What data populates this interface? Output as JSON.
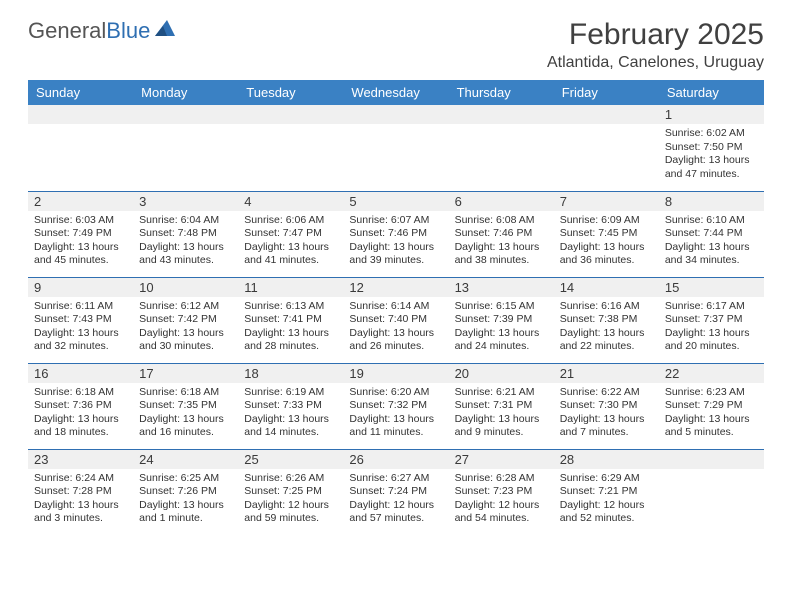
{
  "logo": {
    "text1": "General",
    "text2": "Blue"
  },
  "title": "February 2025",
  "location": "Atlantida, Canelones, Uruguay",
  "colors": {
    "header_bg": "#3a81c4",
    "header_text": "#ffffff",
    "border": "#2f6fb2",
    "daynum_bg": "#f0f0f0",
    "text": "#333333",
    "logo_gray": "#555555",
    "logo_blue": "#2f6fb2",
    "page_bg": "#ffffff"
  },
  "fonts": {
    "title_size_pt": 22,
    "location_size_pt": 12,
    "weekday_size_pt": 10,
    "body_size_pt": 8
  },
  "weekdays": [
    "Sunday",
    "Monday",
    "Tuesday",
    "Wednesday",
    "Thursday",
    "Friday",
    "Saturday"
  ],
  "weeks": [
    [
      {
        "day": "",
        "lines": []
      },
      {
        "day": "",
        "lines": []
      },
      {
        "day": "",
        "lines": []
      },
      {
        "day": "",
        "lines": []
      },
      {
        "day": "",
        "lines": []
      },
      {
        "day": "",
        "lines": []
      },
      {
        "day": "1",
        "lines": [
          "Sunrise: 6:02 AM",
          "Sunset: 7:50 PM",
          "Daylight: 13 hours and 47 minutes."
        ]
      }
    ],
    [
      {
        "day": "2",
        "lines": [
          "Sunrise: 6:03 AM",
          "Sunset: 7:49 PM",
          "Daylight: 13 hours and 45 minutes."
        ]
      },
      {
        "day": "3",
        "lines": [
          "Sunrise: 6:04 AM",
          "Sunset: 7:48 PM",
          "Daylight: 13 hours and 43 minutes."
        ]
      },
      {
        "day": "4",
        "lines": [
          "Sunrise: 6:06 AM",
          "Sunset: 7:47 PM",
          "Daylight: 13 hours and 41 minutes."
        ]
      },
      {
        "day": "5",
        "lines": [
          "Sunrise: 6:07 AM",
          "Sunset: 7:46 PM",
          "Daylight: 13 hours and 39 minutes."
        ]
      },
      {
        "day": "6",
        "lines": [
          "Sunrise: 6:08 AM",
          "Sunset: 7:46 PM",
          "Daylight: 13 hours and 38 minutes."
        ]
      },
      {
        "day": "7",
        "lines": [
          "Sunrise: 6:09 AM",
          "Sunset: 7:45 PM",
          "Daylight: 13 hours and 36 minutes."
        ]
      },
      {
        "day": "8",
        "lines": [
          "Sunrise: 6:10 AM",
          "Sunset: 7:44 PM",
          "Daylight: 13 hours and 34 minutes."
        ]
      }
    ],
    [
      {
        "day": "9",
        "lines": [
          "Sunrise: 6:11 AM",
          "Sunset: 7:43 PM",
          "Daylight: 13 hours and 32 minutes."
        ]
      },
      {
        "day": "10",
        "lines": [
          "Sunrise: 6:12 AM",
          "Sunset: 7:42 PM",
          "Daylight: 13 hours and 30 minutes."
        ]
      },
      {
        "day": "11",
        "lines": [
          "Sunrise: 6:13 AM",
          "Sunset: 7:41 PM",
          "Daylight: 13 hours and 28 minutes."
        ]
      },
      {
        "day": "12",
        "lines": [
          "Sunrise: 6:14 AM",
          "Sunset: 7:40 PM",
          "Daylight: 13 hours and 26 minutes."
        ]
      },
      {
        "day": "13",
        "lines": [
          "Sunrise: 6:15 AM",
          "Sunset: 7:39 PM",
          "Daylight: 13 hours and 24 minutes."
        ]
      },
      {
        "day": "14",
        "lines": [
          "Sunrise: 6:16 AM",
          "Sunset: 7:38 PM",
          "Daylight: 13 hours and 22 minutes."
        ]
      },
      {
        "day": "15",
        "lines": [
          "Sunrise: 6:17 AM",
          "Sunset: 7:37 PM",
          "Daylight: 13 hours and 20 minutes."
        ]
      }
    ],
    [
      {
        "day": "16",
        "lines": [
          "Sunrise: 6:18 AM",
          "Sunset: 7:36 PM",
          "Daylight: 13 hours and 18 minutes."
        ]
      },
      {
        "day": "17",
        "lines": [
          "Sunrise: 6:18 AM",
          "Sunset: 7:35 PM",
          "Daylight: 13 hours and 16 minutes."
        ]
      },
      {
        "day": "18",
        "lines": [
          "Sunrise: 6:19 AM",
          "Sunset: 7:33 PM",
          "Daylight: 13 hours and 14 minutes."
        ]
      },
      {
        "day": "19",
        "lines": [
          "Sunrise: 6:20 AM",
          "Sunset: 7:32 PM",
          "Daylight: 13 hours and 11 minutes."
        ]
      },
      {
        "day": "20",
        "lines": [
          "Sunrise: 6:21 AM",
          "Sunset: 7:31 PM",
          "Daylight: 13 hours and 9 minutes."
        ]
      },
      {
        "day": "21",
        "lines": [
          "Sunrise: 6:22 AM",
          "Sunset: 7:30 PM",
          "Daylight: 13 hours and 7 minutes."
        ]
      },
      {
        "day": "22",
        "lines": [
          "Sunrise: 6:23 AM",
          "Sunset: 7:29 PM",
          "Daylight: 13 hours and 5 minutes."
        ]
      }
    ],
    [
      {
        "day": "23",
        "lines": [
          "Sunrise: 6:24 AM",
          "Sunset: 7:28 PM",
          "Daylight: 13 hours and 3 minutes."
        ]
      },
      {
        "day": "24",
        "lines": [
          "Sunrise: 6:25 AM",
          "Sunset: 7:26 PM",
          "Daylight: 13 hours and 1 minute."
        ]
      },
      {
        "day": "25",
        "lines": [
          "Sunrise: 6:26 AM",
          "Sunset: 7:25 PM",
          "Daylight: 12 hours and 59 minutes."
        ]
      },
      {
        "day": "26",
        "lines": [
          "Sunrise: 6:27 AM",
          "Sunset: 7:24 PM",
          "Daylight: 12 hours and 57 minutes."
        ]
      },
      {
        "day": "27",
        "lines": [
          "Sunrise: 6:28 AM",
          "Sunset: 7:23 PM",
          "Daylight: 12 hours and 54 minutes."
        ]
      },
      {
        "day": "28",
        "lines": [
          "Sunrise: 6:29 AM",
          "Sunset: 7:21 PM",
          "Daylight: 12 hours and 52 minutes."
        ]
      },
      {
        "day": "",
        "lines": []
      }
    ]
  ]
}
